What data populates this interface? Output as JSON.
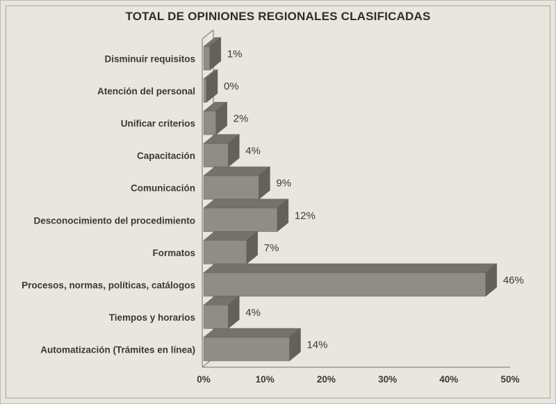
{
  "title": "TOTAL DE OPINIONES REGIONALES CLASIFICADAS",
  "chart_data": {
    "type": "bar",
    "orientation": "horizontal",
    "style": "3d",
    "title": "TOTAL DE OPINIONES REGIONALES CLASIFICADAS",
    "categories": [
      "Disminuir requisitos",
      "Atención del personal",
      "Unificar criterios",
      "Capacitación",
      "Comunicación",
      "Desconocimiento del procedimiento",
      "Formatos",
      "Procesos, normas, políticas, catálogos",
      "Tiempos y horarios",
      "Automatización (Trámites en línea)"
    ],
    "values": [
      1,
      0,
      2,
      4,
      9,
      12,
      7,
      46,
      4,
      14
    ],
    "value_labels": [
      "1%",
      "0%",
      "2%",
      "4%",
      "9%",
      "12%",
      "7%",
      "46%",
      "4%",
      "14%"
    ],
    "x_tick_values": [
      0,
      10,
      20,
      30,
      40,
      50
    ],
    "x_tick_labels": [
      "0%",
      "10%",
      "20%",
      "30%",
      "40%",
      "50%"
    ],
    "xlim": [
      0,
      50
    ],
    "grid": false,
    "legend": "none",
    "colors": {
      "background": "#e8e6de",
      "panel_border": "#a6a59c",
      "bar_front": "#8e8e86",
      "bar_top": "#73736b",
      "bar_side": "#62625a",
      "bar_edge": "#55554e",
      "wall_line": "#8a8a80",
      "text": "#3a3a33",
      "title_text": "#2e2e29"
    }
  }
}
